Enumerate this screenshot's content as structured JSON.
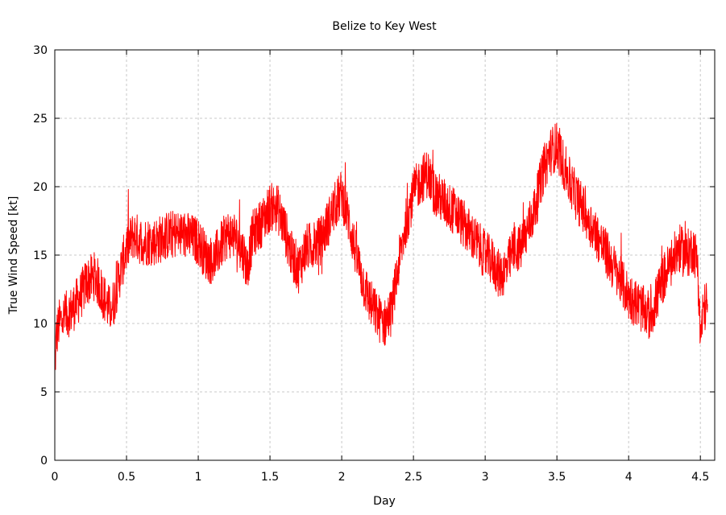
{
  "chart_data": {
    "type": "line",
    "title": "Belize to Key West",
    "xlabel": "Day",
    "ylabel": "True Wind Speed [kt]",
    "xlim": [
      0,
      4.6
    ],
    "ylim": [
      0,
      30
    ],
    "x_ticks": [
      0,
      0.5,
      1,
      1.5,
      2,
      2.5,
      3,
      3.5,
      4,
      4.5
    ],
    "x_tick_labels": [
      "0",
      "0.5",
      "1",
      "1.5",
      "2",
      "2.5",
      "3",
      "3.5",
      "4",
      "4.5"
    ],
    "y_ticks": [
      0,
      5,
      10,
      15,
      20,
      25,
      30
    ],
    "y_tick_labels": [
      "0",
      "5",
      "10",
      "15",
      "20",
      "25",
      "30"
    ],
    "grid": true,
    "legend": "none",
    "series": [
      {
        "color": "#ff0000",
        "noise_amplitude": 1.8,
        "x": [
          0.0,
          0.01,
          0.03,
          0.07,
          0.12,
          0.18,
          0.22,
          0.28,
          0.34,
          0.38,
          0.41,
          0.45,
          0.5,
          0.55,
          0.6,
          0.7,
          0.8,
          0.9,
          1.0,
          1.05,
          1.1,
          1.2,
          1.25,
          1.32,
          1.34,
          1.38,
          1.45,
          1.5,
          1.55,
          1.6,
          1.65,
          1.7,
          1.75,
          1.85,
          1.95,
          2.0,
          2.05,
          2.1,
          2.15,
          2.2,
          2.25,
          2.3,
          2.35,
          2.4,
          2.45,
          2.5,
          2.55,
          2.6,
          2.65,
          2.7,
          2.8,
          2.9,
          3.0,
          3.05,
          3.1,
          3.15,
          3.2,
          3.25,
          3.3,
          3.35,
          3.4,
          3.45,
          3.5,
          3.55,
          3.6,
          3.7,
          3.8,
          3.85,
          3.9,
          3.95,
          4.0,
          4.05,
          4.1,
          4.15,
          4.2,
          4.25,
          4.3,
          4.35,
          4.4,
          4.45,
          4.48,
          4.5,
          4.52,
          4.55
        ],
        "y": [
          6.5,
          9.0,
          10.0,
          10.5,
          11.0,
          12.0,
          13.0,
          13.5,
          12.0,
          11.0,
          11.5,
          13.5,
          15.5,
          16.5,
          16.0,
          16.0,
          16.5,
          16.5,
          16.0,
          15.0,
          14.5,
          16.5,
          16.5,
          15.0,
          14.0,
          16.5,
          17.5,
          18.5,
          18.5,
          17.0,
          15.0,
          14.0,
          15.5,
          16.0,
          18.5,
          19.5,
          17.5,
          15.0,
          13.0,
          11.5,
          10.5,
          10.0,
          11.0,
          14.5,
          17.5,
          19.5,
          20.5,
          21.0,
          19.5,
          19.0,
          18.0,
          16.5,
          15.0,
          14.5,
          13.5,
          14.0,
          15.5,
          15.5,
          17.0,
          18.5,
          21.0,
          22.5,
          23.0,
          21.5,
          20.0,
          18.0,
          16.0,
          15.0,
          14.0,
          13.0,
          12.0,
          11.5,
          11.0,
          10.5,
          12.0,
          13.5,
          14.5,
          15.5,
          15.0,
          15.5,
          14.5,
          9.0,
          11.0,
          11.5
        ]
      }
    ]
  }
}
